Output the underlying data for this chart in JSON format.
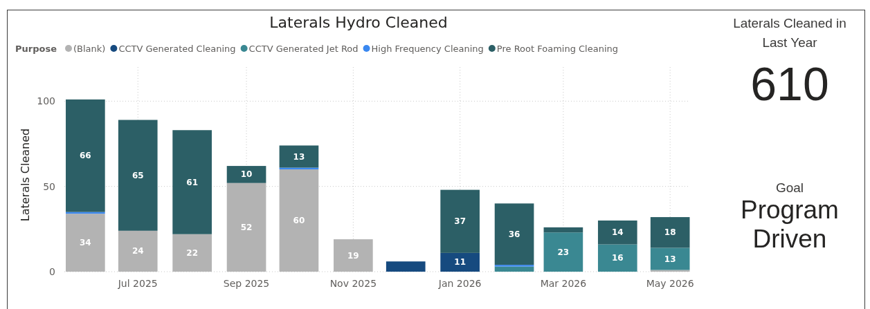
{
  "chart_data": [
    {
      "type": "bar",
      "title": "Laterals Hydro Cleaned",
      "ylabel": "Laterals Cleaned",
      "legend_title": "Purpose",
      "legend": "top left",
      "stacked": true,
      "grid": true,
      "x": [
        "2025-06",
        "2025-07",
        "2025-08",
        "2025-09",
        "2025-10",
        "2025-11",
        "2025-12",
        "2026-01",
        "2026-02",
        "2026-03",
        "2026-04",
        "2026-05"
      ],
      "xlim": [
        "2025-05-20",
        "2026-05-12"
      ],
      "xticks": [
        {
          "value": "2025-07",
          "label": "Jul 2025"
        },
        {
          "value": "2025-09",
          "label": "Sep 2025"
        },
        {
          "value": "2025-11",
          "label": "Nov 2025"
        },
        {
          "value": "2026-01",
          "label": "Jan 2026"
        },
        {
          "value": "2026-03",
          "label": "Mar 2026"
        },
        {
          "value": "2026-05",
          "label": "May 2026"
        }
      ],
      "ylim": [
        0,
        120
      ],
      "yticks": [
        0,
        50,
        100
      ],
      "series": [
        {
          "name": "(Blank)",
          "color": "#b3b3b3",
          "values": [
            34,
            24,
            22,
            52,
            60,
            19,
            null,
            null,
            null,
            null,
            null,
            1
          ],
          "value_labels": [
            "34",
            "24",
            "22",
            "52",
            "60",
            "19",
            null,
            null,
            null,
            null,
            null,
            null
          ]
        },
        {
          "name": "CCTV Generated Cleaning",
          "color": "#164a7f",
          "values": [
            null,
            null,
            null,
            null,
            null,
            null,
            6,
            11,
            null,
            null,
            null,
            null
          ],
          "value_labels": [
            null,
            null,
            null,
            null,
            null,
            null,
            null,
            "11",
            null,
            null,
            null,
            null
          ]
        },
        {
          "name": "CCTV Generated Jet Rod",
          "color": "#3a8892",
          "values": [
            null,
            null,
            null,
            null,
            null,
            null,
            null,
            null,
            3,
            23,
            16,
            13
          ],
          "value_labels": [
            null,
            null,
            null,
            null,
            null,
            null,
            null,
            null,
            null,
            "23",
            "16",
            "13"
          ]
        },
        {
          "name": "High Frequency Cleaning",
          "color": "#3a88f0",
          "values": [
            1,
            null,
            null,
            null,
            1,
            null,
            null,
            null,
            1,
            null,
            null,
            null
          ],
          "value_labels": [
            null,
            null,
            null,
            null,
            null,
            null,
            null,
            null,
            null,
            null,
            null,
            null
          ]
        },
        {
          "name": "Pre Root Foaming Cleaning",
          "color": "#2c5f66",
          "values": [
            66,
            65,
            61,
            10,
            13,
            null,
            null,
            37,
            36,
            3,
            14,
            18
          ],
          "value_labels": [
            "66",
            "65",
            "61",
            "10",
            "13",
            null,
            null,
            "37",
            "36",
            null,
            "14",
            "18"
          ]
        }
      ]
    },
    {
      "type": "other",
      "annotations": [
        "Laterals Cleaned in Last Year",
        "610",
        "Goal",
        "Program Driven"
      ]
    }
  ]
}
